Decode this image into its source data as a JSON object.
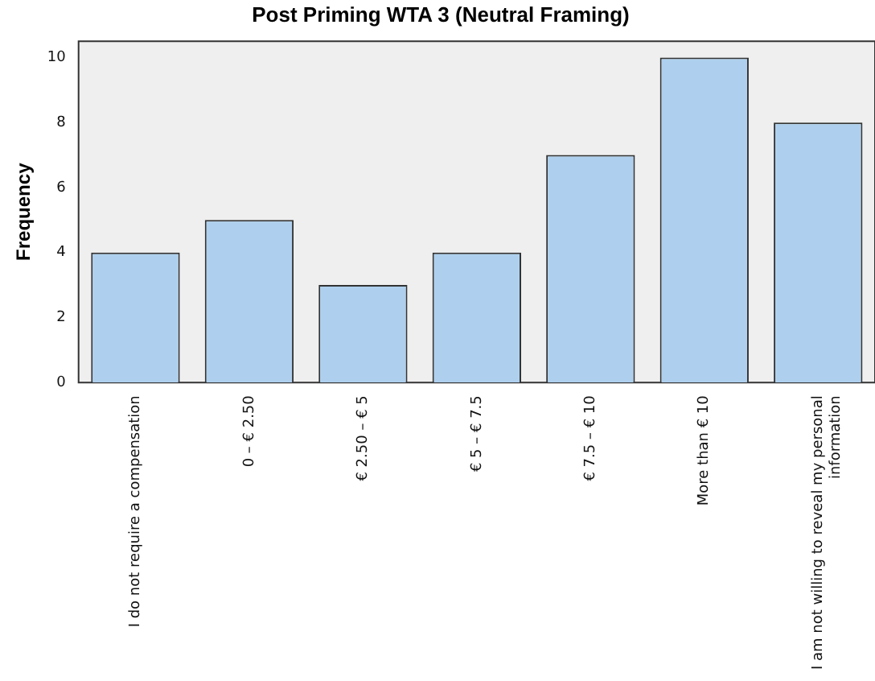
{
  "chart_data": {
    "type": "bar",
    "title": "Post Priming WTA 3 (Neutral Framing)",
    "ylabel": "Frequency",
    "categories": [
      "I do not require a compensation",
      "0 – € 2.50",
      "€ 2.50 – € 5",
      "€ 5 – € 7.5",
      "€ 7.5 – € 10",
      "More than € 10",
      "I am not willing to reveal my personal information"
    ],
    "values": [
      4,
      5,
      3,
      4,
      7,
      10,
      8
    ],
    "color": "#aed0ee",
    "ylim": [
      0,
      10.5
    ],
    "yticks": [
      0,
      2,
      4,
      6,
      8,
      10
    ],
    "grid": false,
    "legend": false
  }
}
